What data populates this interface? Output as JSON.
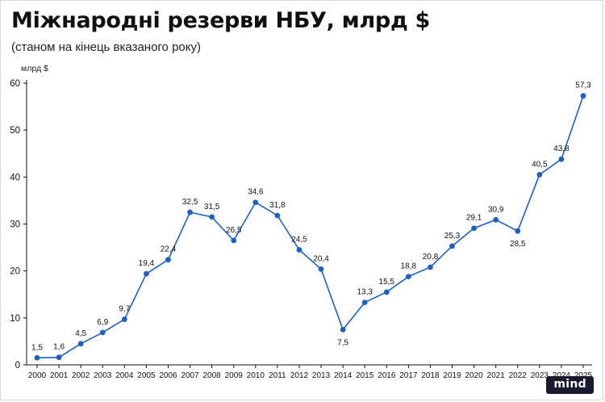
{
  "chart_data": {
    "type": "line",
    "title": "Міжнародні резерви НБУ, млрд $",
    "subtitle": "(станом на кінець вказаного року)",
    "ylabel": "млрд $",
    "xlabel": "",
    "ylim": [
      0,
      60
    ],
    "yticks": [
      0,
      10,
      20,
      30,
      40,
      50,
      60
    ],
    "grid": false,
    "legend": "none",
    "line_color": "#1f5fbf",
    "categories": [
      "2000",
      "2001",
      "2002",
      "2003",
      "2004",
      "2005",
      "2006",
      "2007",
      "2008",
      "2009",
      "2010",
      "2011",
      "2012",
      "2013",
      "2014",
      "2015",
      "2016",
      "2017",
      "2018",
      "2019",
      "2020",
      "2021",
      "2022",
      "2023",
      "2024",
      "2025"
    ],
    "values": [
      1.5,
      1.6,
      4.5,
      6.9,
      9.7,
      19.4,
      22.4,
      32.5,
      31.5,
      26.5,
      34.6,
      31.8,
      24.5,
      20.4,
      7.5,
      13.3,
      15.5,
      18.8,
      20.8,
      25.3,
      29.1,
      30.9,
      28.5,
      40.5,
      43.8,
      57.3
    ],
    "value_labels": [
      "1,5",
      "1,6",
      "4,5",
      "6,9",
      "9,7",
      "19,4",
      "22,4",
      "32,5",
      "31,5",
      "26,5",
      "34,6",
      "31,8",
      "24,5",
      "20,4",
      "7,5",
      "13,3",
      "15,5",
      "18,8",
      "20,8",
      "25,3",
      "29,1",
      "30,9",
      "28,5",
      "40,5",
      "43,8",
      "57,3"
    ],
    "label_below": [
      "2014",
      "2022"
    ]
  },
  "brand": {
    "logo_text": "mind",
    "logo_color": "#1a1a2e"
  }
}
